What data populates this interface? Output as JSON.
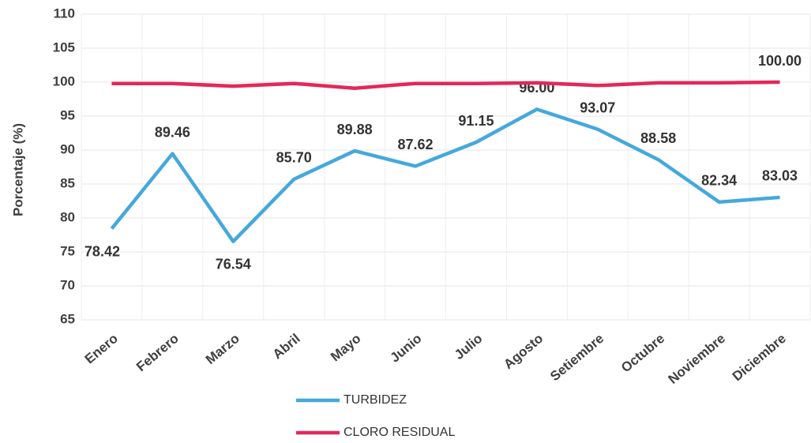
{
  "chart_data": {
    "type": "line",
    "y_label": "Porcentaje (%)",
    "categories": [
      "Enero",
      "Febrero",
      "Marzo",
      "Abril",
      "Mayo",
      "Junio",
      "Julio",
      "Agosto",
      "Setiembre",
      "Octubre",
      "Noviembre",
      "Diciembre"
    ],
    "series": [
      {
        "name": "TURBIDEZ",
        "color": "#45a8dc",
        "values": [
          78.42,
          89.46,
          76.54,
          85.7,
          89.88,
          87.62,
          91.15,
          96.0,
          93.07,
          88.58,
          82.34,
          83.03
        ],
        "value_labels": [
          "78.42",
          "89.46",
          "76.54",
          "85.70",
          "89.88",
          "87.62",
          "91.15",
          "96.00",
          "93.07",
          "88.58",
          "82.34",
          "83.03"
        ]
      },
      {
        "name": "CLORO RESIDUAL",
        "color": "#e2285c",
        "values": [
          99.8,
          99.8,
          99.4,
          99.8,
          99.1,
          99.8,
          99.8,
          99.9,
          99.5,
          99.9,
          99.9,
          100.0
        ],
        "value_labels": [
          null,
          null,
          null,
          null,
          null,
          null,
          null,
          null,
          null,
          null,
          null,
          "100.00"
        ]
      }
    ],
    "ylim": [
      65,
      110
    ],
    "yticks": [
      65,
      70,
      75,
      80,
      85,
      90,
      95,
      100,
      105,
      110
    ],
    "grid": true
  }
}
